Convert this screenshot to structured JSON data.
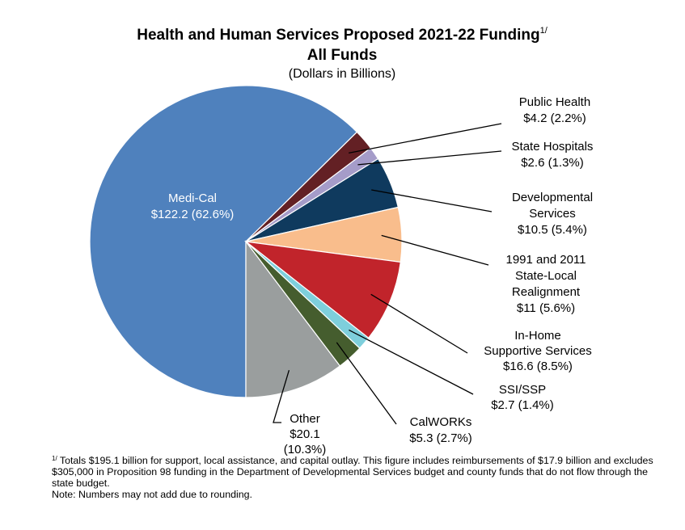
{
  "chart_data": {
    "type": "pie",
    "title": "Health and Human Services Proposed 2021-22 Funding",
    "title_footnote_marker": "1/",
    "title_line2": "All Funds",
    "subtitle": "(Dollars in Billions)",
    "unit": "Dollars in Billions",
    "slices": [
      {
        "name": "Medi-Cal",
        "value": 122.2,
        "percent": 62.6,
        "color": "#4f81bd",
        "label_lines": [
          "Medi-Cal",
          "$122.2 (62.6%)"
        ]
      },
      {
        "name": "Public Health",
        "value": 4.2,
        "percent": 2.2,
        "color": "#632024",
        "label_lines": [
          "Public Health",
          "$4.2 (2.2%)"
        ]
      },
      {
        "name": "State Hospitals",
        "value": 2.6,
        "percent": 1.3,
        "color": "#a59cc9",
        "label_lines": [
          "State Hospitals",
          "$2.6 (1.3%)"
        ]
      },
      {
        "name": "Developmental Services",
        "value": 10.5,
        "percent": 5.4,
        "color": "#0f3a5e",
        "label_lines": [
          "Developmental",
          "Services",
          "$10.5 (5.4%)"
        ]
      },
      {
        "name": "1991 and 2011 State-Local Realignment",
        "value": 11,
        "percent": 5.6,
        "color": "#f9bd8c",
        "label_lines": [
          "1991 and 2011",
          "State-Local",
          "Realignment",
          "$11 (5.6%)"
        ]
      },
      {
        "name": "In-Home Supportive Services",
        "value": 16.6,
        "percent": 8.5,
        "color": "#c1242b",
        "label_lines": [
          "In-Home",
          "Supportive Services",
          "$16.6 (8.5%)"
        ]
      },
      {
        "name": "SSI/SSP",
        "value": 2.7,
        "percent": 1.4,
        "color": "#7ecfdc",
        "label_lines": [
          "SSI/SSP",
          "$2.7 (1.4%)"
        ]
      },
      {
        "name": "CalWORKs",
        "value": 5.3,
        "percent": 2.7,
        "color": "#455d2e",
        "label_lines": [
          "CalWORKs",
          "$5.3 (2.7%)"
        ]
      },
      {
        "name": "Other",
        "value": 20.1,
        "percent": 10.3,
        "color": "#9a9e9e",
        "label_lines": [
          "Other",
          "$20.1",
          "(10.3%)"
        ]
      }
    ]
  },
  "footnote": {
    "marker": "1/",
    "text": " Totals $195.1 billion for support, local assistance, and capital outlay.  This figure includes reimbursements of $17.9 billion and excludes $305,000 in Proposition 98 funding in the Department of Developmental Services budget and county funds that do not flow through the state budget.",
    "note": "Note: Numbers may not add due to rounding."
  }
}
